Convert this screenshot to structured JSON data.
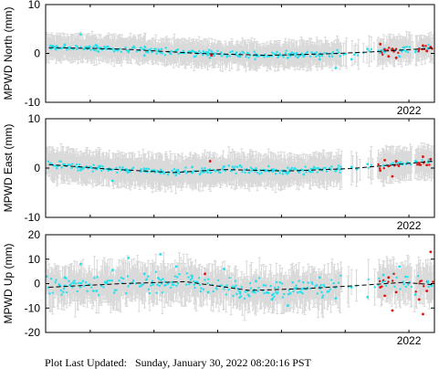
{
  "footer": {
    "label": "Plot Last Updated:",
    "value": "Sunday, January 30, 2022 08:20:16 PST"
  },
  "colors": {
    "frame": "#000000",
    "errorbar": "#d9d9d9",
    "primary_points": "#22e0ee",
    "recent_points": "#e01010",
    "trend": "#000000"
  },
  "chart_data": [
    {
      "type": "scatter",
      "ylabel": "MPWD North (mm)",
      "yticks": [
        10,
        0,
        -10
      ],
      "ylim": [
        -10,
        10
      ],
      "xlim": [
        2016.3,
        2022.4
      ],
      "xticks": [
        {
          "value": 2022.0,
          "label": "2022"
        }
      ],
      "grid": false,
      "base": 1.4,
      "amp": 0.9,
      "jitter": 1.0,
      "err": 2.6,
      "series": [
        {
          "values": [
            [
              2016.6,
              1.8
            ],
            [
              2016.85,
              3.9
            ],
            [
              2017.1,
              1.6
            ],
            [
              2017.35,
              0.9
            ],
            [
              2017.6,
              0.3
            ],
            [
              2017.85,
              -0.4
            ],
            [
              2018.1,
              0.2
            ],
            [
              2018.35,
              0.6
            ],
            [
              2018.6,
              0.5
            ],
            [
              2018.85,
              0.2
            ],
            [
              2019.1,
              -0.2
            ],
            [
              2019.35,
              -0.6
            ],
            [
              2019.6,
              -0.2
            ],
            [
              2019.85,
              -0.5
            ],
            [
              2020.1,
              -0.9
            ],
            [
              2020.35,
              -0.6
            ],
            [
              2020.6,
              -1.2
            ],
            [
              2020.85,
              -3.0
            ],
            [
              2021.1,
              -1.2
            ],
            [
              2021.35,
              0.9
            ],
            [
              2021.6,
              0.6
            ],
            [
              2021.85,
              -0.6
            ],
            [
              2022.1,
              0.3
            ],
            [
              2022.3,
              1.0
            ]
          ]
        },
        {
          "values": [
            [
              2018.9,
              -0.4
            ],
            [
              2021.55,
              1.9
            ],
            [
              2021.62,
              0.8
            ],
            [
              2021.68,
              -0.6
            ],
            [
              2021.74,
              0.9
            ],
            [
              2021.8,
              -0.9
            ],
            [
              2022.16,
              0.9
            ],
            [
              2022.22,
              1.6
            ],
            [
              2022.28,
              0.5
            ],
            [
              2022.34,
              1.3
            ]
          ]
        }
      ],
      "trend": [
        [
          2016.35,
          1.2
        ],
        [
          2017.5,
          0.9
        ],
        [
          2018.7,
          0.0
        ],
        [
          2019.8,
          -0.4
        ],
        [
          2020.7,
          -0.1
        ],
        [
          2021.4,
          0.3
        ],
        [
          2022.4,
          1.1
        ]
      ]
    },
    {
      "type": "scatter",
      "ylabel": "MPWD East (mm)",
      "yticks": [
        10,
        0,
        -10
      ],
      "ylim": [
        -10,
        10
      ],
      "xlim": [
        2016.3,
        2022.4
      ],
      "xticks": [
        {
          "value": 2022.0,
          "label": "2022"
        }
      ],
      "grid": false,
      "base": 0.3,
      "amp": 0.8,
      "jitter": 1.0,
      "err": 3.2,
      "series": [
        {
          "values": [
            [
              2016.6,
              0.7
            ],
            [
              2016.85,
              -0.4
            ],
            [
              2017.1,
              -0.2
            ],
            [
              2017.35,
              -2.6
            ],
            [
              2017.6,
              -0.8
            ],
            [
              2017.85,
              -0.2
            ],
            [
              2018.1,
              -1.0
            ],
            [
              2018.35,
              -0.6
            ],
            [
              2018.6,
              0.2
            ],
            [
              2018.85,
              -0.4
            ],
            [
              2019.1,
              0.3
            ],
            [
              2019.35,
              0.5
            ],
            [
              2019.6,
              -0.1
            ],
            [
              2019.85,
              -0.3
            ],
            [
              2020.1,
              -0.9
            ],
            [
              2020.35,
              -1.3
            ],
            [
              2020.6,
              -0.2
            ],
            [
              2020.85,
              -0.6
            ],
            [
              2021.1,
              0.2
            ],
            [
              2021.35,
              0.8
            ],
            [
              2021.6,
              0.5
            ],
            [
              2021.85,
              1.1
            ],
            [
              2022.1,
              1.4
            ],
            [
              2022.3,
              1.2
            ]
          ]
        },
        {
          "values": [
            [
              2018.88,
              1.4
            ],
            [
              2021.55,
              -0.5
            ],
            [
              2021.62,
              1.6
            ],
            [
              2021.68,
              0.4
            ],
            [
              2021.74,
              -1.7
            ],
            [
              2021.8,
              1.4
            ],
            [
              2022.16,
              1.0
            ],
            [
              2022.22,
              2.3
            ],
            [
              2022.28,
              0.6
            ],
            [
              2022.34,
              1.8
            ]
          ]
        }
      ],
      "trend": [
        [
          2016.35,
          0.7
        ],
        [
          2017.3,
          -0.2
        ],
        [
          2018.3,
          -0.9
        ],
        [
          2019.1,
          -0.3
        ],
        [
          2020.1,
          -0.6
        ],
        [
          2021.1,
          -0.1
        ],
        [
          2022.4,
          1.4
        ]
      ]
    },
    {
      "type": "scatter",
      "ylabel": "MPWD Up (mm)",
      "yticks": [
        20,
        10,
        0,
        -10,
        -20
      ],
      "ylim": [
        -20,
        20
      ],
      "xlim": [
        2016.3,
        2022.4
      ],
      "xticks": [
        {
          "value": 2022.0,
          "label": "2022"
        }
      ],
      "grid": false,
      "base": 1.0,
      "amp": 6.0,
      "jitter": 5.5,
      "err": 7.5,
      "series": [
        {
          "values": [
            [
              2016.6,
              2.5
            ],
            [
              2016.85,
              8.0
            ],
            [
              2017.1,
              -3.0
            ],
            [
              2017.35,
              5.5
            ],
            [
              2017.6,
              10.5
            ],
            [
              2017.85,
              4.0
            ],
            [
              2018.1,
              12.0
            ],
            [
              2018.35,
              7.0
            ],
            [
              2018.6,
              3.0
            ],
            [
              2018.85,
              -3.5
            ],
            [
              2019.1,
              6.0
            ],
            [
              2019.35,
              -4.0
            ],
            [
              2019.6,
              1.0
            ],
            [
              2019.85,
              -6.5
            ],
            [
              2020.1,
              -9.0
            ],
            [
              2020.35,
              -2.0
            ],
            [
              2020.6,
              2.5
            ],
            [
              2020.85,
              -6.0
            ],
            [
              2021.1,
              -1.5
            ],
            [
              2021.35,
              -5.5
            ],
            [
              2021.6,
              3.5
            ],
            [
              2021.85,
              7.0
            ],
            [
              2022.1,
              -4.5
            ],
            [
              2022.3,
              0.5
            ]
          ]
        },
        {
          "values": [
            [
              2018.8,
              4.0
            ],
            [
              2021.55,
              -1.5
            ],
            [
              2021.62,
              -5.0
            ],
            [
              2021.68,
              2.5
            ],
            [
              2021.74,
              -11.0
            ],
            [
              2021.8,
              -3.5
            ],
            [
              2022.16,
              -6.5
            ],
            [
              2022.22,
              -12.5
            ],
            [
              2022.28,
              -3.0
            ],
            [
              2022.34,
              13.0
            ]
          ]
        }
      ],
      "trend": [
        [
          2016.35,
          -1.5
        ],
        [
          2017.5,
          0.0
        ],
        [
          2018.5,
          0.8
        ],
        [
          2019.5,
          -2.8
        ],
        [
          2020.4,
          -2.0
        ],
        [
          2021.2,
          -0.8
        ],
        [
          2021.9,
          0.5
        ],
        [
          2022.4,
          -0.5
        ]
      ]
    }
  ]
}
